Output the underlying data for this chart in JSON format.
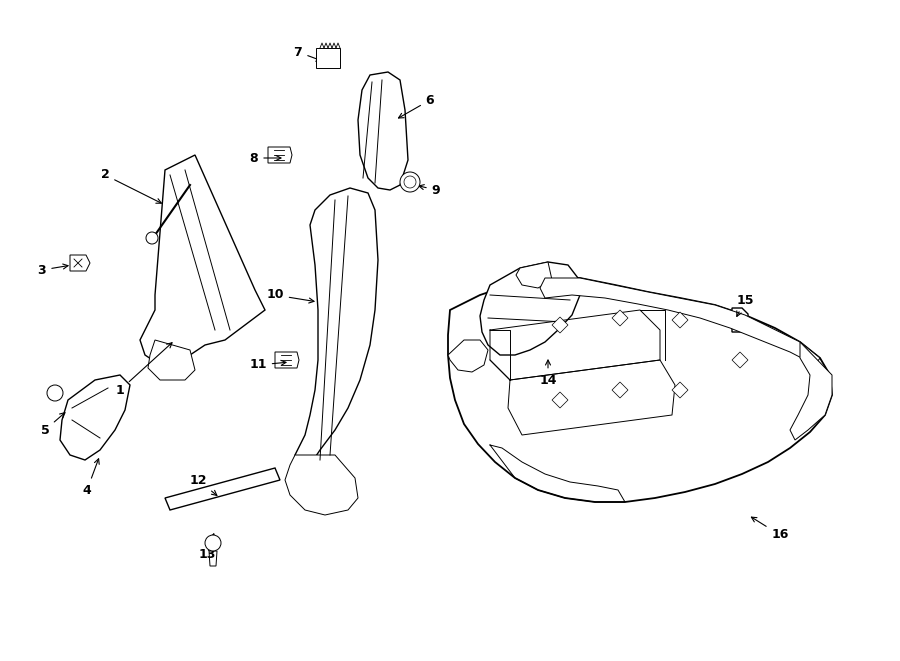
{
  "bg": "#ffffff",
  "lc": "#000000",
  "parts_labels": {
    "1": [
      120,
      390,
      175,
      340
    ],
    "2": [
      105,
      175,
      165,
      205
    ],
    "3": [
      42,
      270,
      72,
      265
    ],
    "4": [
      87,
      490,
      100,
      455
    ],
    "5": [
      45,
      430,
      68,
      410
    ],
    "6": [
      430,
      100,
      395,
      120
    ],
    "7": [
      298,
      52,
      325,
      62
    ],
    "8": [
      254,
      158,
      285,
      158
    ],
    "9": [
      436,
      190,
      415,
      185
    ],
    "10": [
      275,
      295,
      318,
      302
    ],
    "11": [
      258,
      365,
      290,
      362
    ],
    "12": [
      198,
      480,
      220,
      498
    ],
    "13": [
      207,
      555,
      215,
      530
    ],
    "14": [
      548,
      380,
      548,
      356
    ],
    "15": [
      745,
      300,
      735,
      320
    ],
    "16": [
      780,
      535,
      748,
      515
    ]
  }
}
